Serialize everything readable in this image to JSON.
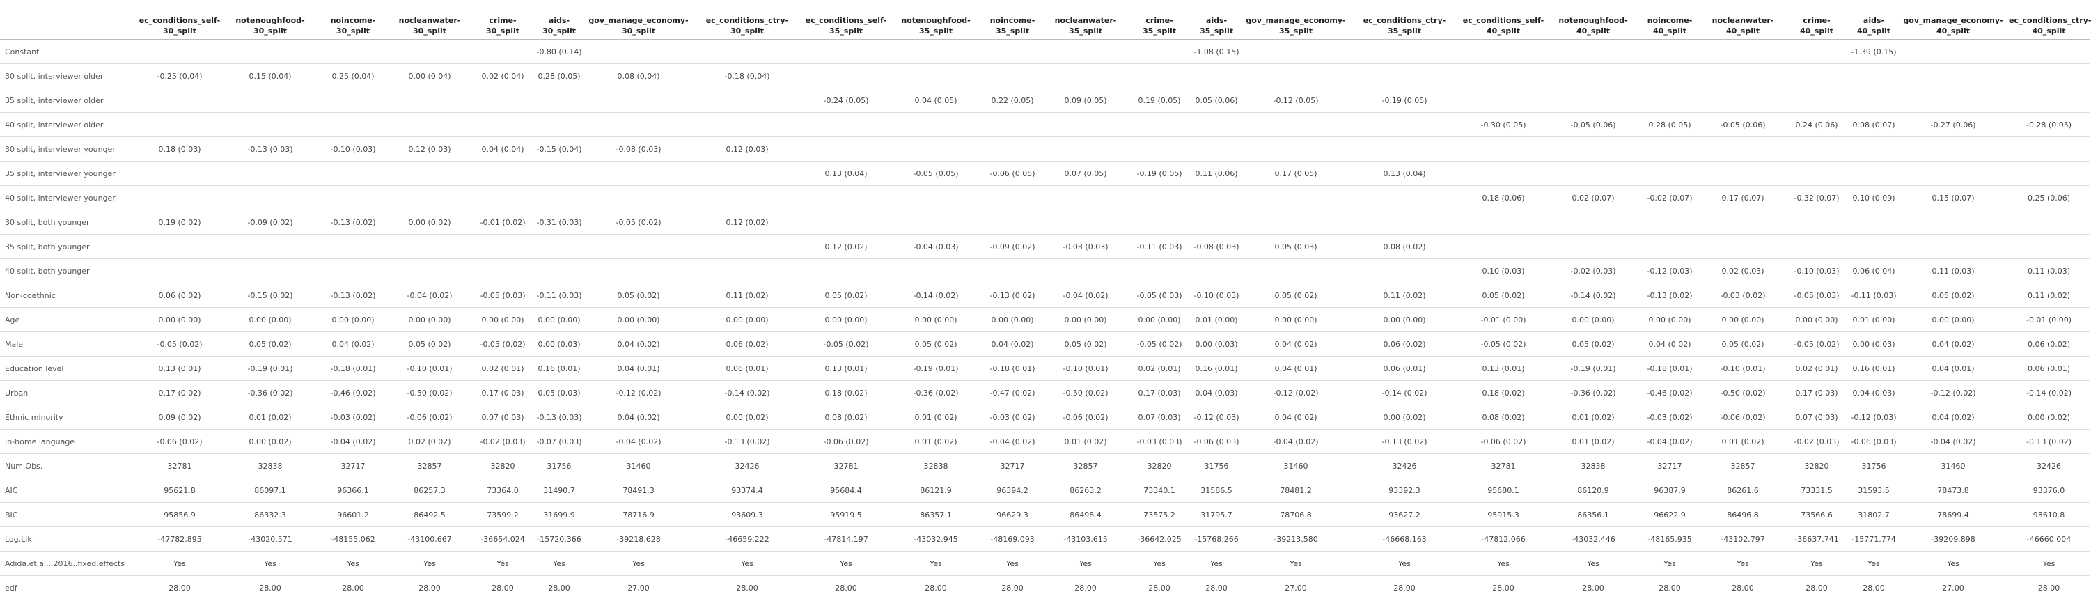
{
  "table": {
    "columns": [
      [
        "ec_conditions_self-",
        "30_split"
      ],
      [
        "notenoughfood-",
        "30_split"
      ],
      [
        "noincome-",
        "30_split"
      ],
      [
        "nocleanwater-",
        "30_split"
      ],
      [
        "crime-",
        "30_split"
      ],
      [
        "aids-",
        "30_split"
      ],
      [
        "gov_manage_economy-",
        "30_split"
      ],
      [
        "ec_conditions_ctry-",
        "30_split"
      ],
      [
        "ec_conditions_self-",
        "35_split"
      ],
      [
        "notenoughfood-",
        "35_split"
      ],
      [
        "noincome-",
        "35_split"
      ],
      [
        "nocleanwater-",
        "35_split"
      ],
      [
        "crime-",
        "35_split"
      ],
      [
        "aids-",
        "35_split"
      ],
      [
        "gov_manage_economy-",
        "35_split"
      ],
      [
        "ec_conditions_ctry-",
        "35_split"
      ],
      [
        "ec_conditions_self-",
        "40_split"
      ],
      [
        "notenoughfood-",
        "40_split"
      ],
      [
        "noincome-",
        "40_split"
      ],
      [
        "nocleanwater-",
        "40_split"
      ],
      [
        "crime-",
        "40_split"
      ],
      [
        "aids-",
        "40_split"
      ],
      [
        "gov_manage_economy-",
        "40_split"
      ],
      [
        "ec_conditions_ctry-",
        "40_split"
      ]
    ],
    "rows": [
      {
        "label": "Constant",
        "cells": [
          "",
          "",
          "",
          "",
          "",
          "-0.80 (0.14)",
          "",
          "",
          "",
          "",
          "",
          "",
          "",
          "-1.08 (0.15)",
          "",
          "",
          "",
          "",
          "",
          "",
          "",
          "-1.39 (0.15)",
          "",
          ""
        ]
      },
      {
        "label": "30 split, interviewer older",
        "cells": [
          "-0.25 (0.04)",
          "0.15 (0.04)",
          "0.25 (0.04)",
          "0.00 (0.04)",
          "0.02 (0.04)",
          "0.28 (0.05)",
          "0.08 (0.04)",
          "-0.18 (0.04)",
          "",
          "",
          "",
          "",
          "",
          "",
          "",
          "",
          "",
          "",
          "",
          "",
          "",
          "",
          "",
          ""
        ]
      },
      {
        "label": "35 split, interviewer older",
        "cells": [
          "",
          "",
          "",
          "",
          "",
          "",
          "",
          "",
          "-0.24 (0.05)",
          "0.04 (0.05)",
          "0.22 (0.05)",
          "0.09 (0.05)",
          "0.19 (0.05)",
          "0.05 (0.06)",
          "-0.12 (0.05)",
          "-0.19 (0.05)",
          "",
          "",
          "",
          "",
          "",
          "",
          "",
          ""
        ]
      },
      {
        "label": "40 split, interviewer older",
        "cells": [
          "",
          "",
          "",
          "",
          "",
          "",
          "",
          "",
          "",
          "",
          "",
          "",
          "",
          "",
          "",
          "",
          "-0.30 (0.05)",
          "-0.05 (0.06)",
          "0.28 (0.05)",
          "-0.05 (0.06)",
          "0.24 (0.06)",
          "0.08 (0.07)",
          "-0.27 (0.06)",
          "-0.28 (0.05)"
        ]
      },
      {
        "label": "30 split, interviewer younger",
        "cells": [
          "0.18 (0.03)",
          "-0.13 (0.03)",
          "-0.10 (0.03)",
          "0.12 (0.03)",
          "0.04 (0.04)",
          "-0.15 (0.04)",
          "-0.08 (0.03)",
          "0.12 (0.03)",
          "",
          "",
          "",
          "",
          "",
          "",
          "",
          "",
          "",
          "",
          "",
          "",
          "",
          "",
          "",
          ""
        ]
      },
      {
        "label": "35 split, interviewer younger",
        "cells": [
          "",
          "",
          "",
          "",
          "",
          "",
          "",
          "",
          "0.13 (0.04)",
          "-0.05 (0.05)",
          "-0.06 (0.05)",
          "0.07 (0.05)",
          "-0.19 (0.05)",
          "0.11 (0.06)",
          "0.17 (0.05)",
          "0.13 (0.04)",
          "",
          "",
          "",
          "",
          "",
          "",
          "",
          ""
        ]
      },
      {
        "label": "40 split, interviewer younger",
        "cells": [
          "",
          "",
          "",
          "",
          "",
          "",
          "",
          "",
          "",
          "",
          "",
          "",
          "",
          "",
          "",
          "",
          "0.18 (0.06)",
          "0.02 (0.07)",
          "-0.02 (0.07)",
          "0.17 (0.07)",
          "-0.32 (0.07)",
          "0.10 (0.09)",
          "0.15 (0.07)",
          "0.25 (0.06)"
        ]
      },
      {
        "label": "30 split, both younger",
        "cells": [
          "0.19 (0.02)",
          "-0.09 (0.02)",
          "-0.13 (0.02)",
          "0.00 (0.02)",
          "-0.01 (0.02)",
          "-0.31 (0.03)",
          "-0.05 (0.02)",
          "0.12 (0.02)",
          "",
          "",
          "",
          "",
          "",
          "",
          "",
          "",
          "",
          "",
          "",
          "",
          "",
          "",
          "",
          ""
        ]
      },
      {
        "label": "35 split, both younger",
        "cells": [
          "",
          "",
          "",
          "",
          "",
          "",
          "",
          "",
          "0.12 (0.02)",
          "-0.04 (0.03)",
          "-0.09 (0.02)",
          "-0.03 (0.03)",
          "-0.11 (0.03)",
          "-0.08 (0.03)",
          "0.05 (0.03)",
          "0.08 (0.02)",
          "",
          "",
          "",
          "",
          "",
          "",
          "",
          ""
        ]
      },
      {
        "label": "40 split, both younger",
        "cells": [
          "",
          "",
          "",
          "",
          "",
          "",
          "",
          "",
          "",
          "",
          "",
          "",
          "",
          "",
          "",
          "",
          "0.10 (0.03)",
          "-0.02 (0.03)",
          "-0.12 (0.03)",
          "0.02 (0.03)",
          "-0.10 (0.03)",
          "0.06 (0.04)",
          "0.11 (0.03)",
          "0.11 (0.03)"
        ]
      },
      {
        "label": "Non-coethnic",
        "cells": [
          "0.06 (0.02)",
          "-0.15 (0.02)",
          "-0.13 (0.02)",
          "-0.04 (0.02)",
          "-0.05 (0.03)",
          "-0.11 (0.03)",
          "0.05 (0.02)",
          "0.11 (0.02)",
          "0.05 (0.02)",
          "-0.14 (0.02)",
          "-0.13 (0.02)",
          "-0.04 (0.02)",
          "-0.05 (0.03)",
          "-0.10 (0.03)",
          "0.05 (0.02)",
          "0.11 (0.02)",
          "0.05 (0.02)",
          "-0.14 (0.02)",
          "-0.13 (0.02)",
          "-0.03 (0.02)",
          "-0.05 (0.03)",
          "-0.11 (0.03)",
          "0.05 (0.02)",
          "0.11 (0.02)"
        ]
      },
      {
        "label": "Age",
        "cells": [
          "0.00 (0.00)",
          "0.00 (0.00)",
          "0.00 (0.00)",
          "0.00 (0.00)",
          "0.00 (0.00)",
          "0.00 (0.00)",
          "0.00 (0.00)",
          "0.00 (0.00)",
          "0.00 (0.00)",
          "0.00 (0.00)",
          "0.00 (0.00)",
          "0.00 (0.00)",
          "0.00 (0.00)",
          "0.01 (0.00)",
          "0.00 (0.00)",
          "0.00 (0.00)",
          "-0.01 (0.00)",
          "0.00 (0.00)",
          "0.00 (0.00)",
          "0.00 (0.00)",
          "0.00 (0.00)",
          "0.01 (0.00)",
          "0.00 (0.00)",
          "-0.01 (0.00)"
        ]
      },
      {
        "label": "Male",
        "cells": [
          "-0.05 (0.02)",
          "0.05 (0.02)",
          "0.04 (0.02)",
          "0.05 (0.02)",
          "-0.05 (0.02)",
          "0.00 (0.03)",
          "0.04 (0.02)",
          "0.06 (0.02)",
          "-0.05 (0.02)",
          "0.05 (0.02)",
          "0.04 (0.02)",
          "0.05 (0.02)",
          "-0.05 (0.02)",
          "0.00 (0.03)",
          "0.04 (0.02)",
          "0.06 (0.02)",
          "-0.05 (0.02)",
          "0.05 (0.02)",
          "0.04 (0.02)",
          "0.05 (0.02)",
          "-0.05 (0.02)",
          "0.00 (0.03)",
          "0.04 (0.02)",
          "0.06 (0.02)"
        ]
      },
      {
        "label": "Education level",
        "cells": [
          "0.13 (0.01)",
          "-0.19 (0.01)",
          "-0.18 (0.01)",
          "-0.10 (0.01)",
          "0.02 (0.01)",
          "0.16 (0.01)",
          "0.04 (0.01)",
          "0.06 (0.01)",
          "0.13 (0.01)",
          "-0.19 (0.01)",
          "-0.18 (0.01)",
          "-0.10 (0.01)",
          "0.02 (0.01)",
          "0.16 (0.01)",
          "0.04 (0.01)",
          "0.06 (0.01)",
          "0.13 (0.01)",
          "-0.19 (0.01)",
          "-0.18 (0.01)",
          "-0.10 (0.01)",
          "0.02 (0.01)",
          "0.16 (0.01)",
          "0.04 (0.01)",
          "0.06 (0.01)"
        ]
      },
      {
        "label": "Urban",
        "cells": [
          "0.17 (0.02)",
          "-0.36 (0.02)",
          "-0.46 (0.02)",
          "-0.50 (0.02)",
          "0.17 (0.03)",
          "0.05 (0.03)",
          "-0.12 (0.02)",
          "-0.14 (0.02)",
          "0.18 (0.02)",
          "-0.36 (0.02)",
          "-0.47 (0.02)",
          "-0.50 (0.02)",
          "0.17 (0.03)",
          "0.04 (0.03)",
          "-0.12 (0.02)",
          "-0.14 (0.02)",
          "0.18 (0.02)",
          "-0.36 (0.02)",
          "-0.46 (0.02)",
          "-0.50 (0.02)",
          "0.17 (0.03)",
          "0.04 (0.03)",
          "-0.12 (0.02)",
          "-0.14 (0.02)"
        ]
      },
      {
        "label": "Ethnic minority",
        "cells": [
          "0.09 (0.02)",
          "0.01 (0.02)",
          "-0.03 (0.02)",
          "-0.06 (0.02)",
          "0.07 (0.03)",
          "-0.13 (0.03)",
          "0.04 (0.02)",
          "0.00 (0.02)",
          "0.08 (0.02)",
          "0.01 (0.02)",
          "-0.03 (0.02)",
          "-0.06 (0.02)",
          "0.07 (0.03)",
          "-0.12 (0.03)",
          "0.04 (0.02)",
          "0.00 (0.02)",
          "0.08 (0.02)",
          "0.01 (0.02)",
          "-0.03 (0.02)",
          "-0.06 (0.02)",
          "0.07 (0.03)",
          "-0.12 (0.03)",
          "0.04 (0.02)",
          "0.00 (0.02)"
        ]
      },
      {
        "label": "In-home language",
        "cells": [
          "-0.06 (0.02)",
          "0.00 (0.02)",
          "-0.04 (0.02)",
          "0.02 (0.02)",
          "-0.02 (0.03)",
          "-0.07 (0.03)",
          "-0.04 (0.02)",
          "-0.13 (0.02)",
          "-0.06 (0.02)",
          "0.01 (0.02)",
          "-0.04 (0.02)",
          "0.01 (0.02)",
          "-0.03 (0.03)",
          "-0.06 (0.03)",
          "-0.04 (0.02)",
          "-0.13 (0.02)",
          "-0.06 (0.02)",
          "0.01 (0.02)",
          "-0.04 (0.02)",
          "0.01 (0.02)",
          "-0.02 (0.03)",
          "-0.06 (0.03)",
          "-0.04 (0.02)",
          "-0.13 (0.02)"
        ]
      },
      {
        "label": "Num.Obs.",
        "gof": true,
        "cells": [
          "32781",
          "32838",
          "32717",
          "32857",
          "32820",
          "31756",
          "31460",
          "32426",
          "32781",
          "32838",
          "32717",
          "32857",
          "32820",
          "31756",
          "31460",
          "32426",
          "32781",
          "32838",
          "32717",
          "32857",
          "32820",
          "31756",
          "31460",
          "32426"
        ]
      },
      {
        "label": "AIC",
        "cells": [
          "95621.8",
          "86097.1",
          "96366.1",
          "86257.3",
          "73364.0",
          "31490.7",
          "78491.3",
          "93374.4",
          "95684.4",
          "86121.9",
          "96394.2",
          "86263.2",
          "73340.1",
          "31586.5",
          "78481.2",
          "93392.3",
          "95680.1",
          "86120.9",
          "96387.9",
          "86261.6",
          "73331.5",
          "31593.5",
          "78473.8",
          "93376.0"
        ]
      },
      {
        "label": "BIC",
        "cells": [
          "95856.9",
          "86332.3",
          "96601.2",
          "86492.5",
          "73599.2",
          "31699.9",
          "78716.9",
          "93609.3",
          "95919.5",
          "86357.1",
          "96629.3",
          "86498.4",
          "73575.2",
          "31795.7",
          "78706.8",
          "93627.2",
          "95915.3",
          "86356.1",
          "96622.9",
          "86496.8",
          "73566.6",
          "31802.7",
          "78699.4",
          "93610.8"
        ]
      },
      {
        "label": "Log.Lik.",
        "cells": [
          "-47782.895",
          "-43020.571",
          "-48155.062",
          "-43100.667",
          "-36654.024",
          "-15720.366",
          "-39218.628",
          "-46659.222",
          "-47814.197",
          "-43032.945",
          "-48169.093",
          "-43103.615",
          "-36642.025",
          "-15768.266",
          "-39213.580",
          "-46668.163",
          "-47812.066",
          "-43032.446",
          "-48165.935",
          "-43102.797",
          "-36637.741",
          "-15771.774",
          "-39209.898",
          "-46660.004"
        ]
      },
      {
        "label": "Adida.et.al...2016..fixed.effects",
        "cells": [
          "Yes",
          "Yes",
          "Yes",
          "Yes",
          "Yes",
          "Yes",
          "Yes",
          "Yes",
          "Yes",
          "Yes",
          "Yes",
          "Yes",
          "Yes",
          "Yes",
          "Yes",
          "Yes",
          "Yes",
          "Yes",
          "Yes",
          "Yes",
          "Yes",
          "Yes",
          "Yes",
          "Yes"
        ]
      },
      {
        "label": "edf",
        "cells": [
          "28.00",
          "28.00",
          "28.00",
          "28.00",
          "28.00",
          "28.00",
          "27.00",
          "28.00",
          "28.00",
          "28.00",
          "28.00",
          "28.00",
          "28.00",
          "28.00",
          "27.00",
          "28.00",
          "28.00",
          "28.00",
          "28.00",
          "28.00",
          "28.00",
          "28.00",
          "27.00",
          "28.00"
        ]
      }
    ]
  }
}
